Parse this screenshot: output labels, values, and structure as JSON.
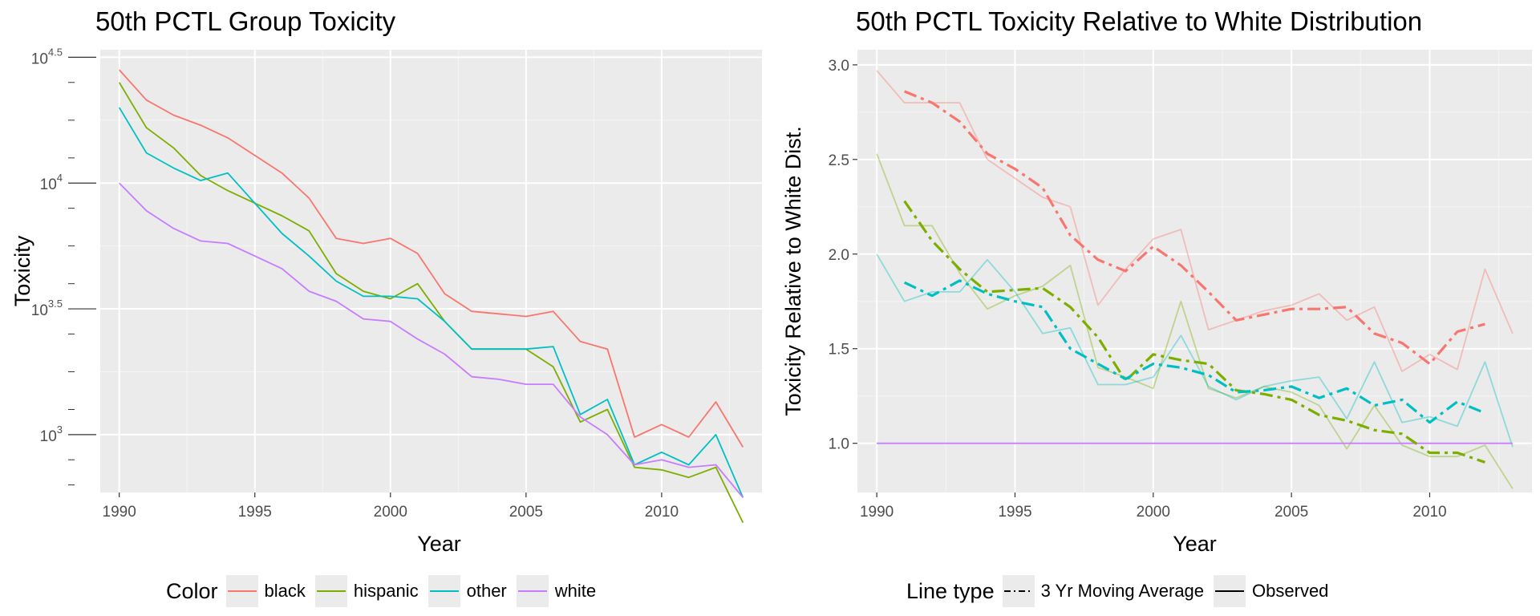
{
  "chart_data": [
    {
      "type": "line",
      "title": "50th PCTL Group Toxicity",
      "xlabel": "Year",
      "ylabel": "Toxicity",
      "y_scale": "log10",
      "xlim": [
        1989.3,
        2013.7
      ],
      "ylim_log10": [
        2.77,
        4.53
      ],
      "x_ticks": [
        1990,
        1995,
        2000,
        2005,
        2010
      ],
      "y_ticks": [
        {
          "log10": 3,
          "base": "10",
          "exp": "3"
        },
        {
          "log10": 3.5,
          "base": "10",
          "exp": "3.5"
        },
        {
          "log10": 4,
          "base": "10",
          "exp": "4"
        },
        {
          "log10": 4.5,
          "base": "10",
          "exp": "4.5"
        }
      ],
      "x": [
        1990,
        1991,
        1992,
        1993,
        1994,
        1995,
        1996,
        1997,
        1998,
        1999,
        2000,
        2001,
        2002,
        2003,
        2004,
        2005,
        2006,
        2007,
        2008,
        2009,
        2010,
        2011,
        2012,
        2013
      ],
      "series": [
        {
          "name": "black",
          "color": "#F8766D",
          "log10_values": [
            4.45,
            4.33,
            4.27,
            4.23,
            4.18,
            4.11,
            4.04,
            3.94,
            3.78,
            3.76,
            3.78,
            3.72,
            3.56,
            3.49,
            3.48,
            3.47,
            3.49,
            3.37,
            3.34,
            2.99,
            3.04,
            2.99,
            3.13,
            2.95
          ]
        },
        {
          "name": "hispanic",
          "color": "#7CAE00",
          "log10_values": [
            4.4,
            4.22,
            4.14,
            4.03,
            3.97,
            3.92,
            3.87,
            3.81,
            3.64,
            3.57,
            3.54,
            3.6,
            3.45,
            3.34,
            3.34,
            3.34,
            3.27,
            3.05,
            3.1,
            2.87,
            2.86,
            2.83,
            2.87,
            2.65
          ]
        },
        {
          "name": "other",
          "color": "#00BFC4",
          "log10_values": [
            4.3,
            4.12,
            4.06,
            4.01,
            4.04,
            3.92,
            3.8,
            3.71,
            3.61,
            3.55,
            3.55,
            3.54,
            3.45,
            3.34,
            3.34,
            3.34,
            3.35,
            3.08,
            3.14,
            2.88,
            2.93,
            2.88,
            3.0,
            2.75
          ]
        },
        {
          "name": "white",
          "color": "#C77CFF",
          "log10_values": [
            4.0,
            3.89,
            3.82,
            3.77,
            3.76,
            3.71,
            3.66,
            3.57,
            3.53,
            3.46,
            3.45,
            3.38,
            3.32,
            3.23,
            3.22,
            3.2,
            3.2,
            3.07,
            3.0,
            2.88,
            2.9,
            2.87,
            2.88,
            2.75
          ]
        }
      ],
      "legend": {
        "title": "Color",
        "entries": [
          "black",
          "hispanic",
          "other",
          "white"
        ],
        "position": "bottom"
      }
    },
    {
      "type": "line",
      "title": "50th PCTL Toxicity Relative to White Distribution",
      "xlabel": "Year",
      "ylabel": "Toxicity Relative to White Dist.",
      "xlim": [
        1989.3,
        2013.7
      ],
      "ylim": [
        0.74,
        3.08
      ],
      "x_ticks": [
        1990,
        1995,
        2000,
        2005,
        2010
      ],
      "y_ticks": [
        "1.0",
        "1.5",
        "2.0",
        "2.5",
        "3.0"
      ],
      "x": [
        1990,
        1991,
        1992,
        1993,
        1994,
        1995,
        1996,
        1997,
        1998,
        1999,
        2000,
        2001,
        2002,
        2003,
        2004,
        2005,
        2006,
        2007,
        2008,
        2009,
        2010,
        2011,
        2012,
        2013
      ],
      "observed": [
        {
          "name": "black",
          "color": "#F8766D",
          "values": [
            2.97,
            2.8,
            2.8,
            2.8,
            2.5,
            2.4,
            2.3,
            2.25,
            1.73,
            1.92,
            2.08,
            2.13,
            1.6,
            1.65,
            1.7,
            1.73,
            1.79,
            1.65,
            1.72,
            1.38,
            1.47,
            1.39,
            1.92,
            1.58
          ]
        },
        {
          "name": "hispanic",
          "color": "#7CAE00",
          "values": [
            2.53,
            2.15,
            2.15,
            1.9,
            1.71,
            1.78,
            1.83,
            1.94,
            1.4,
            1.35,
            1.29,
            1.75,
            1.29,
            1.24,
            1.3,
            1.27,
            1.2,
            0.97,
            1.2,
            0.99,
            0.93,
            0.93,
            0.99,
            0.76
          ]
        },
        {
          "name": "other",
          "color": "#00BFC4",
          "values": [
            2.0,
            1.75,
            1.8,
            1.8,
            1.97,
            1.8,
            1.58,
            1.61,
            1.31,
            1.31,
            1.35,
            1.57,
            1.3,
            1.23,
            1.3,
            1.33,
            1.35,
            1.13,
            1.43,
            1.11,
            1.14,
            1.09,
            1.43,
            0.98
          ]
        },
        {
          "name": "white",
          "color": "#C77CFF",
          "values": [
            1,
            1,
            1,
            1,
            1,
            1,
            1,
            1,
            1,
            1,
            1,
            1,
            1,
            1,
            1,
            1,
            1,
            1,
            1,
            1,
            1,
            1,
            1,
            1
          ]
        }
      ],
      "moving_average_x": [
        1991,
        1992,
        1993,
        1994,
        1995,
        1996,
        1997,
        1998,
        1999,
        2000,
        2001,
        2002,
        2003,
        2004,
        2005,
        2006,
        2007,
        2008,
        2009,
        2010,
        2011,
        2012
      ],
      "moving_average": [
        {
          "name": "black",
          "color": "#F8766D",
          "values": [
            2.86,
            2.8,
            2.7,
            2.53,
            2.45,
            2.35,
            2.1,
            1.97,
            1.91,
            2.04,
            1.94,
            1.8,
            1.65,
            1.68,
            1.71,
            1.71,
            1.72,
            1.58,
            1.53,
            1.42,
            1.59,
            1.63
          ]
        },
        {
          "name": "hispanic",
          "color": "#7CAE00",
          "values": [
            2.28,
            2.07,
            1.92,
            1.8,
            1.81,
            1.82,
            1.72,
            1.56,
            1.33,
            1.47,
            1.44,
            1.42,
            1.28,
            1.26,
            1.23,
            1.15,
            1.12,
            1.07,
            1.05,
            0.95,
            0.95,
            0.9
          ]
        },
        {
          "name": "other",
          "color": "#00BFC4",
          "values": [
            1.85,
            1.78,
            1.86,
            1.79,
            1.75,
            1.72,
            1.5,
            1.42,
            1.34,
            1.42,
            1.4,
            1.36,
            1.27,
            1.28,
            1.3,
            1.24,
            1.29,
            1.2,
            1.23,
            1.11,
            1.22,
            1.16
          ]
        }
      ],
      "legend": {
        "title": "Line type",
        "entries": [
          "3 Yr Moving Average",
          "Observed"
        ],
        "position": "bottom"
      }
    }
  ]
}
